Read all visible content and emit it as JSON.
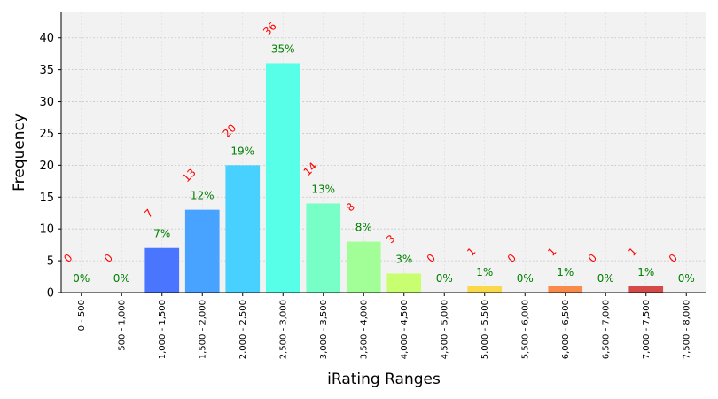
{
  "chart_data": {
    "type": "bar",
    "title": "",
    "xlabel": "iRating Ranges",
    "ylabel": "Frequency",
    "ylim": [
      0,
      44
    ],
    "yticks": [
      0,
      5,
      10,
      15,
      20,
      25,
      30,
      35,
      40
    ],
    "grid": true,
    "categories": [
      "0 - 500",
      "500 - 1,000",
      "1,000 - 1,500",
      "1,500 - 2,000",
      "2,000 - 2,500",
      "2,500 - 3,000",
      "3,000 - 3,500",
      "3,500 - 4,000",
      "4,000 - 4,500",
      "4,500 - 5,000",
      "5,000 - 5,500",
      "5,500 - 6,000",
      "6,000 - 6,500",
      "6,500 - 7,000",
      "7,000 - 7,500",
      "7,500 - 8,000"
    ],
    "values": [
      0,
      0,
      7,
      13,
      20,
      36,
      14,
      8,
      3,
      0,
      1,
      0,
      1,
      0,
      1,
      0
    ],
    "percent_labels": [
      "0%",
      "0%",
      "7%",
      "12%",
      "19%",
      "35%",
      "13%",
      "8%",
      "3%",
      "0%",
      "1%",
      "0%",
      "1%",
      "0%",
      "1%",
      "0%"
    ],
    "bar_colors": [
      "#3b30ff",
      "#3b50ff",
      "#4a75ff",
      "#48a2ff",
      "#48d1ff",
      "#58ffe8",
      "#78ffc8",
      "#a2ff98",
      "#c8ff70",
      "#eef045",
      "#f9d84a",
      "#f7b347",
      "#f88a4c",
      "#f06545",
      "#d44a48",
      "#b7394a"
    ],
    "plot_background": "#f2f2f2",
    "count_label_color": "#ff0000",
    "percent_label_color": "#008000"
  }
}
